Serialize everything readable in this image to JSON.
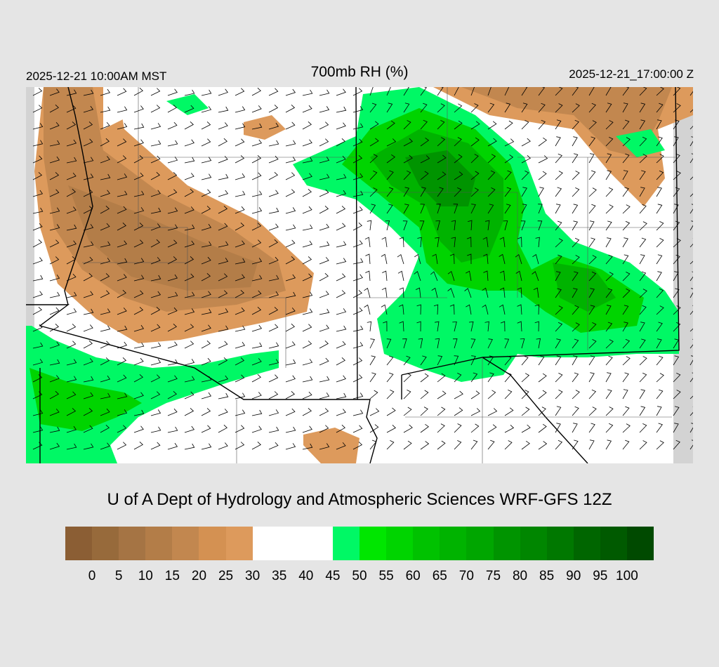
{
  "header": {
    "valid_local": "2025-12-21 10:00AM MST",
    "title": "700mb RH (%)",
    "valid_utc": "2025-12-21_17:00:00 Z"
  },
  "footer": {
    "credit": "U of A Dept of Hydrology and Atmospheric Sciences WRF-GFS 12Z"
  },
  "colorbar": {
    "colors": [
      "#8b5e34",
      "#976a3b",
      "#a57444",
      "#b37d48",
      "#c2874f",
      "#d49152",
      "#dd9a5c",
      "#ffffff",
      "#ffffff",
      "#ffffff",
      "#00f865",
      "#00e600",
      "#00d400",
      "#00c200",
      "#00b300",
      "#00a600",
      "#009400",
      "#008600",
      "#007800",
      "#006600",
      "#005a00",
      "#004a00"
    ],
    "ticks": [
      "0",
      "5",
      "10",
      "15",
      "20",
      "25",
      "30",
      "35",
      "40",
      "45",
      "50",
      "55",
      "60",
      "65",
      "70",
      "75",
      "80",
      "85",
      "90",
      "95",
      "100"
    ]
  }
}
